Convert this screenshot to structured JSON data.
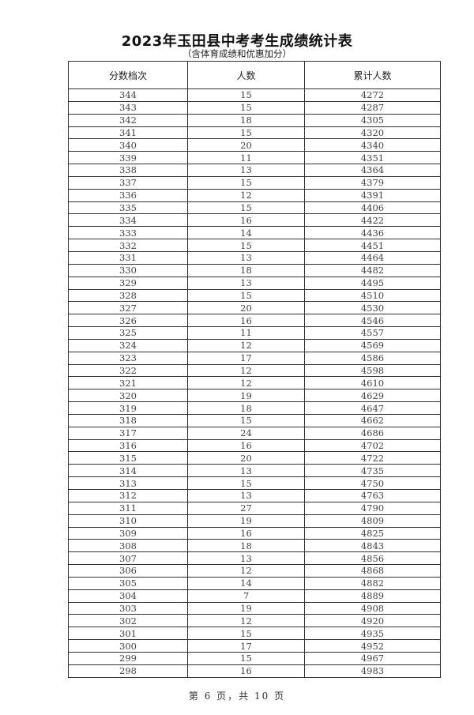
{
  "document": {
    "title": "2023年玉田县中考考生成绩统计表",
    "subtitle": "（含体育成绩和优惠加分）",
    "footer": "第 6 页，共 10 页"
  },
  "table": {
    "headers": [
      "分数档次",
      "人数",
      "累计人数"
    ],
    "rows": [
      [
        "344",
        "15",
        "4272"
      ],
      [
        "343",
        "15",
        "4287"
      ],
      [
        "342",
        "18",
        "4305"
      ],
      [
        "341",
        "15",
        "4320"
      ],
      [
        "340",
        "20",
        "4340"
      ],
      [
        "339",
        "11",
        "4351"
      ],
      [
        "338",
        "13",
        "4364"
      ],
      [
        "337",
        "15",
        "4379"
      ],
      [
        "336",
        "12",
        "4391"
      ],
      [
        "335",
        "15",
        "4406"
      ],
      [
        "334",
        "16",
        "4422"
      ],
      [
        "333",
        "14",
        "4436"
      ],
      [
        "332",
        "15",
        "4451"
      ],
      [
        "331",
        "13",
        "4464"
      ],
      [
        "330",
        "18",
        "4482"
      ],
      [
        "329",
        "13",
        "4495"
      ],
      [
        "328",
        "15",
        "4510"
      ],
      [
        "327",
        "20",
        "4530"
      ],
      [
        "326",
        "16",
        "4546"
      ],
      [
        "325",
        "11",
        "4557"
      ],
      [
        "324",
        "12",
        "4569"
      ],
      [
        "323",
        "17",
        "4586"
      ],
      [
        "322",
        "12",
        "4598"
      ],
      [
        "321",
        "12",
        "4610"
      ],
      [
        "320",
        "19",
        "4629"
      ],
      [
        "319",
        "18",
        "4647"
      ],
      [
        "318",
        "15",
        "4662"
      ],
      [
        "317",
        "24",
        "4686"
      ],
      [
        "316",
        "16",
        "4702"
      ],
      [
        "315",
        "20",
        "4722"
      ],
      [
        "314",
        "13",
        "4735"
      ],
      [
        "313",
        "15",
        "4750"
      ],
      [
        "312",
        "13",
        "4763"
      ],
      [
        "311",
        "27",
        "4790"
      ],
      [
        "310",
        "19",
        "4809"
      ],
      [
        "309",
        "16",
        "4825"
      ],
      [
        "308",
        "18",
        "4843"
      ],
      [
        "307",
        "13",
        "4856"
      ],
      [
        "306",
        "12",
        "4868"
      ],
      [
        "305",
        "14",
        "4882"
      ],
      [
        "304",
        "7",
        "4889"
      ],
      [
        "303",
        "19",
        "4908"
      ],
      [
        "302",
        "12",
        "4920"
      ],
      [
        "301",
        "15",
        "4935"
      ],
      [
        "300",
        "17",
        "4952"
      ],
      [
        "299",
        "15",
        "4967"
      ],
      [
        "298",
        "16",
        "4983"
      ]
    ]
  }
}
